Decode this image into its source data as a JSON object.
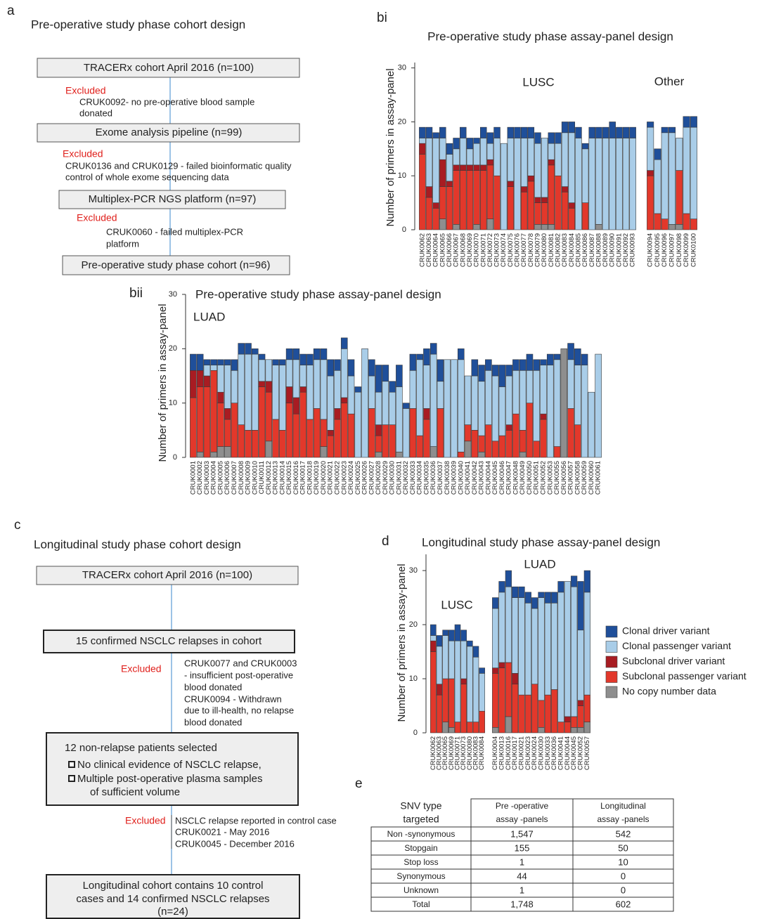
{
  "panels": {
    "a": {
      "label": "a",
      "title": "Pre-operative study phase cohort design",
      "boxes": [
        "TRACERx cohort April 2016 (n=100)",
        "Exome analysis pipeline (n=99)",
        "Multiplex-PCR NGS platform (n=97)",
        "Pre-operative study phase cohort (n=96)"
      ],
      "exclusions": [
        {
          "heading": "Excluded",
          "lines": [
            "CRUK0092- no pre-operative blood sample",
            "donated"
          ]
        },
        {
          "heading": "Excluded",
          "lines": [
            "CRUK0136 and CRUK0129 - failed bioinformatic quality",
            "control of whole exome sequencing data"
          ]
        },
        {
          "heading": "Excluded",
          "lines": [
            "CRUK0060 - failed multiplex-PCR",
            "platform"
          ]
        }
      ]
    },
    "c": {
      "label": "c",
      "title": "Longitudinal study phase cohort design",
      "boxes": [
        "TRACERx cohort April 2016 (n=100)",
        "15 confirmed NSCLC relapses in cohort"
      ],
      "selection": {
        "title": "12 non-relapse patients selected",
        "bullets": [
          [
            "No clinical evidence of NSCLC relapse,"
          ],
          [
            "Multiple post-operative plasma samples",
            "of sufficient volume"
          ]
        ]
      },
      "final": [
        "Longitudinal cohort contains 10 control",
        "cases and 14 confirmed NSCLC relapses",
        "(n=24)"
      ],
      "exclusions": [
        {
          "heading": "Excluded",
          "lines": [
            "CRUK0077 and CRUK0003",
            "- insufficient post-operative",
            "blood donated",
            "CRUK0094 - Withdrawn",
            "due to ill-health, no relapse",
            "blood donated"
          ]
        },
        {
          "heading": "Excluded",
          "lines": [
            "NSCLC relapse reported in control case",
            "CRUK0021 - May 2016",
            "CRUK0045 - December 2016"
          ]
        }
      ]
    }
  },
  "chart_data": [
    {
      "type": "bar",
      "stacked": true,
      "panel_label": "bi",
      "title": "Pre-operative study phase assay-panel design",
      "ylabel": "Number of primers in assay-panel",
      "ylim": [
        0,
        31
      ],
      "yticks": [
        0,
        10,
        20,
        30
      ],
      "groups": [
        {
          "name": "LUSC",
          "categories": [
            "CRUK0062",
            "CRUK0063",
            "CRUK0064",
            "CRUK0065",
            "CRUK0066",
            "CRUK0067",
            "CRUK0068",
            "CRUK0069",
            "CRUK0070",
            "CRUK0071",
            "CRUK0072",
            "CRUK0073",
            "CRUK0074",
            "CRUK0075",
            "CRUK0076",
            "CRUK0077",
            "CRUK0078",
            "CRUK0079",
            "CRUK0080",
            "CRUK0081",
            "CRUK0082",
            "CRUK0083",
            "CRUK0084",
            "CRUK0085",
            "CRUK0086",
            "CRUK0087",
            "CRUK0088",
            "CRUK0089",
            "CRUK0090",
            "CRUK0091",
            "CRUK0092",
            "CRUK0093"
          ]
        },
        {
          "name": "Other",
          "categories": [
            "CRUK0094",
            "CRUK0095",
            "CRUK0096",
            "CRUK0097",
            "CRUK0098",
            "CRUK0099",
            "CRUK0100"
          ]
        }
      ],
      "series": [
        {
          "color": "#1f4f9a",
          "values": [
            2,
            2,
            1,
            2,
            2,
            2,
            2,
            2,
            1,
            2,
            2,
            2,
            0,
            2,
            2,
            2,
            2,
            2,
            0,
            2,
            2,
            2,
            2,
            2,
            1,
            2,
            2,
            2,
            3,
            2,
            2,
            2,
            1,
            2,
            1,
            1,
            0,
            2,
            2
          ]
        },
        {
          "color": "#a9cde8",
          "values": [
            1,
            9,
            12,
            4,
            5,
            3,
            5,
            3,
            4,
            5,
            3,
            7,
            16,
            8,
            17,
            9,
            7,
            10,
            11,
            3,
            6,
            10,
            13,
            17,
            10,
            17,
            16,
            17,
            17,
            17,
            17,
            17,
            8,
            10,
            16,
            17,
            6,
            16,
            17
          ]
        },
        {
          "color": "#a81c22",
          "values": [
            2,
            2,
            1,
            5,
            1,
            1,
            1,
            1,
            1,
            1,
            1,
            0,
            0,
            1,
            0,
            1,
            1,
            1,
            1,
            1,
            0,
            1,
            1,
            0,
            0,
            0,
            0,
            0,
            0,
            0,
            0,
            0,
            1,
            0,
            0,
            0,
            0,
            0,
            0
          ]
        },
        {
          "color": "#e2382b",
          "values": [
            14,
            6,
            4,
            6,
            8,
            10,
            11,
            11,
            10,
            11,
            10,
            10,
            0,
            8,
            0,
            7,
            9,
            4,
            4,
            11,
            10,
            7,
            4,
            0,
            5,
            0,
            0,
            0,
            0,
            0,
            0,
            0,
            10,
            3,
            2,
            0,
            10,
            3,
            2
          ]
        },
        {
          "color": "#8e8e8e",
          "values": [
            0,
            0,
            0,
            2,
            0,
            1,
            0,
            0,
            1,
            0,
            2,
            0,
            0,
            0,
            0,
            0,
            0,
            1,
            1,
            1,
            0,
            0,
            0,
            0,
            0,
            0,
            1,
            0,
            0,
            0,
            0,
            0,
            0,
            0,
            0,
            1,
            1,
            0,
            0
          ]
        }
      ]
    },
    {
      "type": "bar",
      "stacked": true,
      "panel_label": "bii",
      "title": "Pre-operative study phase assay-panel design",
      "ylabel": "Number of primers in assay-panel",
      "ylim": [
        0,
        30
      ],
      "yticks": [
        0,
        10,
        20,
        30
      ],
      "groups": [
        {
          "name": "LUAD",
          "categories": [
            "CRUK0001",
            "CRUK0002",
            "CRUK0003",
            "CRUK0004",
            "CRUK0005",
            "CRUK0006",
            "CRUK0007",
            "CRUK0008",
            "CRUK0009",
            "CRUK0010",
            "CRUK0011",
            "CRUK0012",
            "CRUK0013",
            "CRUK0014",
            "CRUK0015",
            "CRUK0016",
            "CRUK0017",
            "CRUK0018",
            "CRUK0019",
            "CRUK0020",
            "CRUK0021",
            "CRUK0022",
            "CRUK0023",
            "CRUK0024",
            "CRUK0025",
            "CRUK0026",
            "CRUK0027",
            "CRUK0028",
            "CRUK0029",
            "CRUK0030",
            "CRUK0031",
            "CRUK0032",
            "CRUK0033",
            "CRUK0034",
            "CRUK0035",
            "CRUK0036",
            "CRUK0037",
            "CRUK0038",
            "CRUK0039",
            "CRUK0040",
            "CRUK0041",
            "CRUK0042",
            "CRUK0043",
            "CRUK0044",
            "CRUK0045",
            "CRUK0046",
            "CRUK0047",
            "CRUK0048",
            "CRUK0049",
            "CRUK0050",
            "CRUK0051",
            "CRUK0052",
            "CRUK0053",
            "CRUK0055",
            "CRUK0056",
            "CRUK0057",
            "CRUK0058",
            "CRUK0059",
            "CRUK0060",
            "CRUK0061"
          ]
        }
      ],
      "series": [
        {
          "color": "#1f4f9a",
          "values": [
            3,
            3,
            1,
            1,
            1,
            1,
            2,
            2,
            2,
            1,
            1,
            0,
            1,
            1,
            2,
            2,
            2,
            2,
            2,
            2,
            3,
            2,
            2,
            3,
            1,
            0,
            3,
            5,
            3,
            2,
            4,
            1,
            3,
            1,
            3,
            2,
            4,
            0,
            0,
            2,
            0,
            3,
            3,
            2,
            2,
            4,
            2,
            2,
            2,
            3,
            2,
            1,
            2,
            1,
            0,
            3,
            3,
            2,
            0,
            0
          ]
        },
        {
          "color": "#a9cde8",
          "values": [
            0,
            0,
            2,
            1,
            5,
            8,
            6,
            13,
            14,
            14,
            4,
            4,
            10,
            12,
            5,
            7,
            4,
            10,
            9,
            11,
            10,
            7,
            9,
            7,
            12,
            20,
            6,
            6,
            8,
            6,
            12,
            9,
            7,
            14,
            8,
            17,
            5,
            18,
            18,
            17,
            9,
            10,
            10,
            10,
            12,
            9,
            9,
            8,
            11,
            6,
            13,
            9,
            17,
            16,
            0,
            9,
            11,
            17,
            12,
            19
          ]
        },
        {
          "color": "#a81c22",
          "values": [
            5,
            3,
            2,
            0,
            2,
            2,
            0,
            0,
            0,
            0,
            1,
            2,
            0,
            0,
            3,
            3,
            1,
            0,
            0,
            0,
            1,
            2,
            1,
            0,
            0,
            0,
            0,
            2,
            0,
            0,
            0,
            0,
            0,
            0,
            2,
            0,
            0,
            0,
            0,
            0,
            0,
            0,
            0,
            0,
            0,
            0,
            1,
            0,
            0,
            0,
            0,
            1,
            0,
            0,
            0,
            0,
            0,
            0,
            0,
            0
          ]
        },
        {
          "color": "#e2382b",
          "values": [
            11,
            12,
            13,
            15,
            8,
            5,
            10,
            6,
            5,
            5,
            13,
            9,
            7,
            5,
            10,
            8,
            12,
            7,
            9,
            5,
            4,
            7,
            10,
            8,
            0,
            0,
            9,
            3,
            6,
            6,
            0,
            0,
            9,
            4,
            7,
            0,
            9,
            0,
            0,
            1,
            3,
            5,
            3,
            6,
            3,
            4,
            5,
            8,
            4,
            10,
            3,
            7,
            0,
            2,
            0,
            9,
            6,
            0,
            0,
            0
          ]
        },
        {
          "color": "#8e8e8e",
          "values": [
            0,
            1,
            0,
            1,
            2,
            2,
            0,
            0,
            0,
            0,
            0,
            3,
            0,
            0,
            0,
            0,
            0,
            0,
            0,
            2,
            0,
            0,
            0,
            0,
            0,
            0,
            0,
            1,
            0,
            0,
            1,
            0,
            0,
            0,
            0,
            2,
            0,
            0,
            0,
            0,
            3,
            0,
            1,
            0,
            0,
            0,
            0,
            0,
            1,
            0,
            0,
            0,
            0,
            0,
            20,
            0,
            0,
            0,
            0,
            0
          ]
        }
      ]
    },
    {
      "type": "bar",
      "stacked": true,
      "panel_label": "d",
      "title": "Longitudinal study phase assay-panel design",
      "ylabel": "Number of primers in assay-panel",
      "ylim": [
        0,
        33
      ],
      "yticks": [
        0,
        10,
        20,
        30
      ],
      "groups": [
        {
          "name": "LUSC",
          "categories": [
            "CRUK0062",
            "CRUK0063",
            "CRUK0065",
            "CRUK0069",
            "CRUK0071",
            "CRUK0073",
            "CRUK0080",
            "CRUK0083",
            "CRUK0084"
          ]
        },
        {
          "name": "LUAD",
          "categories": [
            "CRUK0004",
            "CRUK0013",
            "CRUK0016",
            "CRUK0017",
            "CRUK0021",
            "CRUK0023",
            "CRUK0024",
            "CRUK0030",
            "CRUK0033",
            "CRUK0036",
            "CRUK0041",
            "CRUK0044",
            "CRUK0045",
            "CRUK0052",
            "CRUK0057"
          ]
        }
      ],
      "series": [
        {
          "name": "Clonal driver variant",
          "color": "#1f4f9a",
          "values": [
            2,
            2,
            1,
            2,
            3,
            2,
            1,
            2,
            1,
            2,
            2,
            3,
            2,
            2,
            2,
            2,
            1,
            2,
            2,
            2,
            0,
            2,
            9,
            4
          ]
        },
        {
          "name": "Clonal passenger variant",
          "color": "#a9cde8",
          "values": [
            1,
            7,
            8,
            7,
            15,
            7,
            14,
            12,
            7,
            11,
            13,
            14,
            14,
            18,
            17,
            14,
            19,
            17,
            16,
            24,
            25,
            24,
            13,
            19
          ]
        },
        {
          "name": "Subclonal driver variant",
          "color": "#a81c22",
          "values": [
            2,
            2,
            0,
            0,
            0,
            1,
            0,
            0,
            0,
            1,
            1,
            0,
            2,
            0,
            0,
            0,
            0,
            0,
            0,
            0,
            1,
            0,
            1,
            0
          ]
        },
        {
          "name": "Subclonal passenger variant",
          "color": "#e2382b",
          "values": [
            15,
            7,
            8,
            9,
            2,
            9,
            2,
            2,
            4,
            10,
            12,
            10,
            9,
            7,
            7,
            9,
            5,
            7,
            8,
            2,
            2,
            2,
            4,
            5
          ]
        },
        {
          "name": "No copy number data",
          "color": "#8e8e8e",
          "values": [
            0,
            0,
            2,
            1,
            0,
            0,
            0,
            0,
            0,
            1,
            0,
            3,
            0,
            0,
            0,
            0,
            1,
            0,
            0,
            0,
            0,
            1,
            1,
            2
          ]
        }
      ]
    }
  ],
  "table": {
    "label": "e",
    "header": [
      [
        "SNV type",
        "targeted"
      ],
      [
        "Pre -operative",
        "assay -panels"
      ],
      [
        "Longitudinal",
        "assay -panels"
      ]
    ],
    "rows": [
      [
        "Non -synonymous",
        "1,547",
        "542"
      ],
      [
        "Stopgain",
        "155",
        "50"
      ],
      [
        "Stop loss",
        "1",
        "10"
      ],
      [
        "Synonymous",
        "44",
        "0"
      ],
      [
        "Unknown",
        "1",
        "0"
      ],
      [
        "Total",
        "1,748",
        "602"
      ]
    ]
  }
}
